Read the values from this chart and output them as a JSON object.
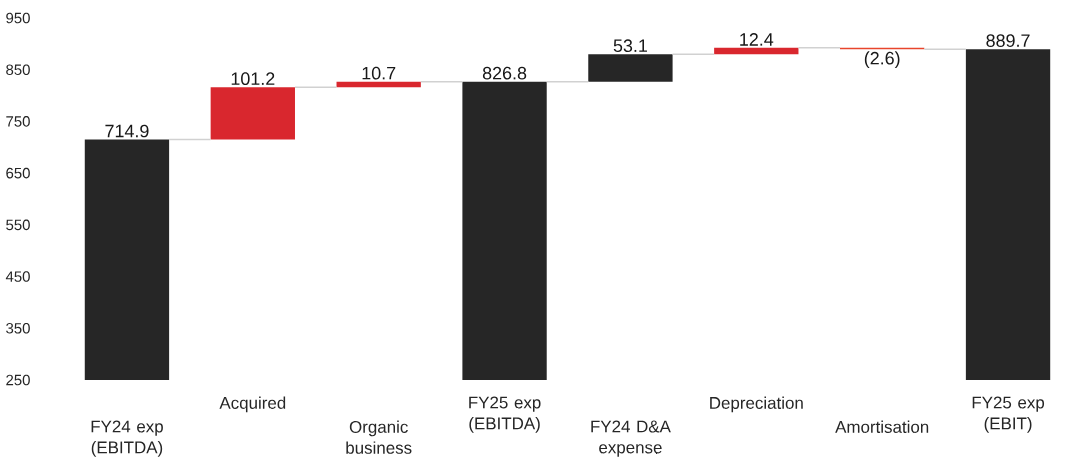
{
  "chart_data": {
    "type": "bar",
    "categories": [
      "FY24 exp (EBITDA)",
      "Acquired",
      "Organic business",
      "FY25 exp (EBITDA)",
      "FY24 D&A expense",
      "Depreciation",
      "Amortisation",
      "FY25 exp (EBIT)"
    ],
    "values": [
      714.9,
      101.2,
      10.7,
      826.8,
      53.1,
      12.4,
      -2.6,
      889.7
    ],
    "base": [
      0,
      714.9,
      816.1,
      0,
      826.8,
      879.9,
      892.3,
      0
    ],
    "colors": [
      "#262626",
      "#d9272e",
      "#d9272e",
      "#262626",
      "#262626",
      "#d9272e",
      "#e8452c",
      "#262626"
    ],
    "value_labels": [
      "714.9",
      "101.2",
      "10.7",
      "826.8",
      "53.1",
      "12.4",
      "(2.6)",
      "889.7"
    ],
    "ylim": [
      250,
      950
    ],
    "yticks": [
      250,
      350,
      450,
      550,
      650,
      750,
      850,
      950
    ],
    "grid": false
  }
}
